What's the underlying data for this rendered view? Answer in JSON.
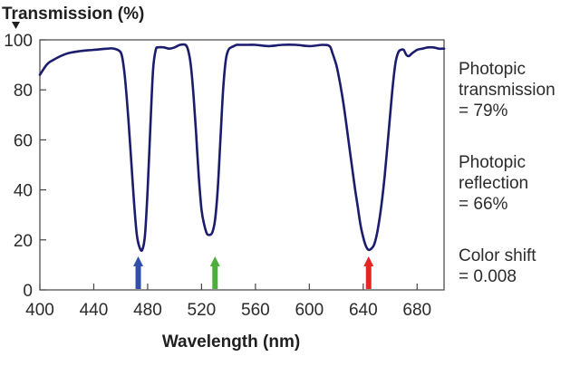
{
  "chart_data": {
    "type": "line",
    "title": "",
    "ylabel": "Transmission (%)",
    "xlabel": "Wavelength (nm)",
    "xlim": [
      400,
      700
    ],
    "ylim": [
      0,
      100
    ],
    "x_ticks": [
      400,
      440,
      480,
      520,
      560,
      600,
      640,
      680
    ],
    "y_ticks": [
      0,
      20,
      40,
      60,
      80,
      100
    ],
    "grid": false,
    "series": [
      {
        "color": "#1c1c6e",
        "x": [
          400,
          405,
          410,
          420,
          430,
          440,
          450,
          455,
          460,
          462,
          464,
          466,
          468,
          470,
          472,
          474,
          476,
          478,
          480,
          482,
          484,
          486,
          488,
          492,
          496,
          500,
          504,
          508,
          510,
          512,
          514,
          516,
          518,
          520,
          522,
          524,
          526,
          528,
          530,
          532,
          534,
          536,
          538,
          540,
          542,
          544,
          546,
          548,
          550,
          555,
          560,
          570,
          580,
          590,
          600,
          610,
          615,
          617,
          620,
          622,
          624,
          626,
          628,
          630,
          632,
          634,
          636,
          638,
          640,
          642,
          644,
          646,
          648,
          650,
          652,
          654,
          656,
          658,
          660,
          662,
          664,
          666,
          668,
          670,
          672,
          674,
          676,
          680,
          684,
          688,
          692,
          696,
          700
        ],
        "y": [
          86,
          90,
          92,
          94.5,
          95.5,
          96,
          96.5,
          96.5,
          95,
          90,
          80,
          66,
          50,
          34,
          22,
          17,
          16,
          22,
          40,
          65,
          88,
          96,
          97,
          97,
          96.5,
          97,
          98,
          98,
          96,
          90,
          78,
          62,
          45,
          32,
          26,
          22.5,
          22,
          23,
          28,
          40,
          60,
          80,
          92,
          96,
          97,
          97.5,
          98,
          98,
          98,
          98,
          98,
          97.5,
          98,
          98,
          97.5,
          98,
          97.5,
          95,
          90,
          85,
          79,
          72,
          64,
          56,
          48,
          40,
          33,
          26,
          21,
          17.5,
          16,
          16.5,
          18,
          22,
          28,
          36,
          46,
          58,
          70,
          82,
          91,
          95,
          96,
          96,
          94,
          93.5,
          94.5,
          96,
          96.5,
          97,
          97,
          96.5,
          96.5
        ]
      }
    ],
    "markers": [
      {
        "x": 473,
        "color": "#2f4fa8"
      },
      {
        "x": 530,
        "color": "#4caf3a"
      },
      {
        "x": 644,
        "color": "#e52424"
      }
    ],
    "annotations": [
      {
        "lines": [
          "Photopic",
          "transmission",
          "= 79%"
        ]
      },
      {
        "lines": [
          "Photopic",
          "reflection",
          "= 66%"
        ]
      },
      {
        "lines": [
          "Color shift",
          "= 0.008"
        ]
      }
    ]
  }
}
